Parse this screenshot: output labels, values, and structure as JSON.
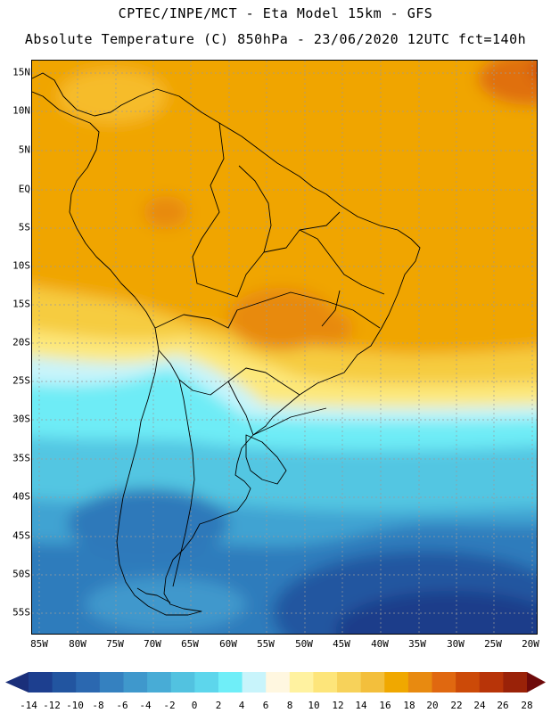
{
  "header": {
    "line1": "CPTEC/INPE/MCT -  Eta Model 15km - GFS",
    "line2": "Absolute Temperature (C) 850hPa - 23/06/2020 12UTC fct=140h"
  },
  "map": {
    "lat_labels": [
      "15N",
      "10N",
      "5N",
      "EQ",
      "5S",
      "10S",
      "15S",
      "20S",
      "25S",
      "30S",
      "35S",
      "40S",
      "45S",
      "50S",
      "55S"
    ],
    "lon_labels": [
      "85W",
      "80W",
      "75W",
      "70W",
      "65W",
      "60W",
      "55W",
      "50W",
      "45W",
      "40W",
      "35W",
      "30W",
      "25W",
      "20W"
    ]
  },
  "colorbar": {
    "labels": [
      "-14",
      "-12",
      "-10",
      "-8",
      "-6",
      "-4",
      "-2",
      "0",
      "2",
      "4",
      "6",
      "8",
      "10",
      "12",
      "14",
      "16",
      "18",
      "20",
      "22",
      "24",
      "26",
      "28"
    ],
    "colors": [
      "#1d3f8f",
      "#2255a0",
      "#2b68b0",
      "#3581c0",
      "#3f98cc",
      "#48acd6",
      "#52c2e0",
      "#5dd6ec",
      "#6feef8",
      "#c8f4fb",
      "#fff7e0",
      "#fff2a0",
      "#fde57a",
      "#f7d25a",
      "#f3bf3c",
      "#f0a800",
      "#e88a10",
      "#e06810",
      "#cc4a08",
      "#b83408",
      "#9a2208",
      "#7a1010"
    ],
    "low_arrow_color": "#1a2f7a",
    "high_arrow_color": "#6e0a0a"
  }
}
